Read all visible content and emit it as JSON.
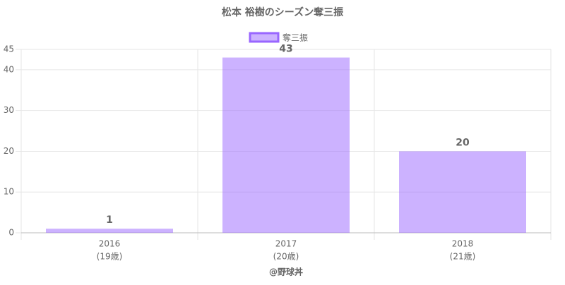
{
  "chart_data": {
    "type": "bar",
    "title": "松本 裕樹のシーズン奪三振",
    "categories": [
      [
        "2016",
        "(19歳)"
      ],
      [
        "2017",
        "(20歳)"
      ],
      [
        "2018",
        "(21歳)"
      ]
    ],
    "series": [
      {
        "name": "奪三振",
        "color": "#9966ff",
        "values": [
          1,
          43,
          20
        ]
      }
    ],
    "ylim": [
      0,
      45
    ],
    "yticks": [
      0,
      10,
      20,
      30,
      40,
      45
    ],
    "grid": true,
    "legend": "top",
    "credit": "@野球丼"
  }
}
